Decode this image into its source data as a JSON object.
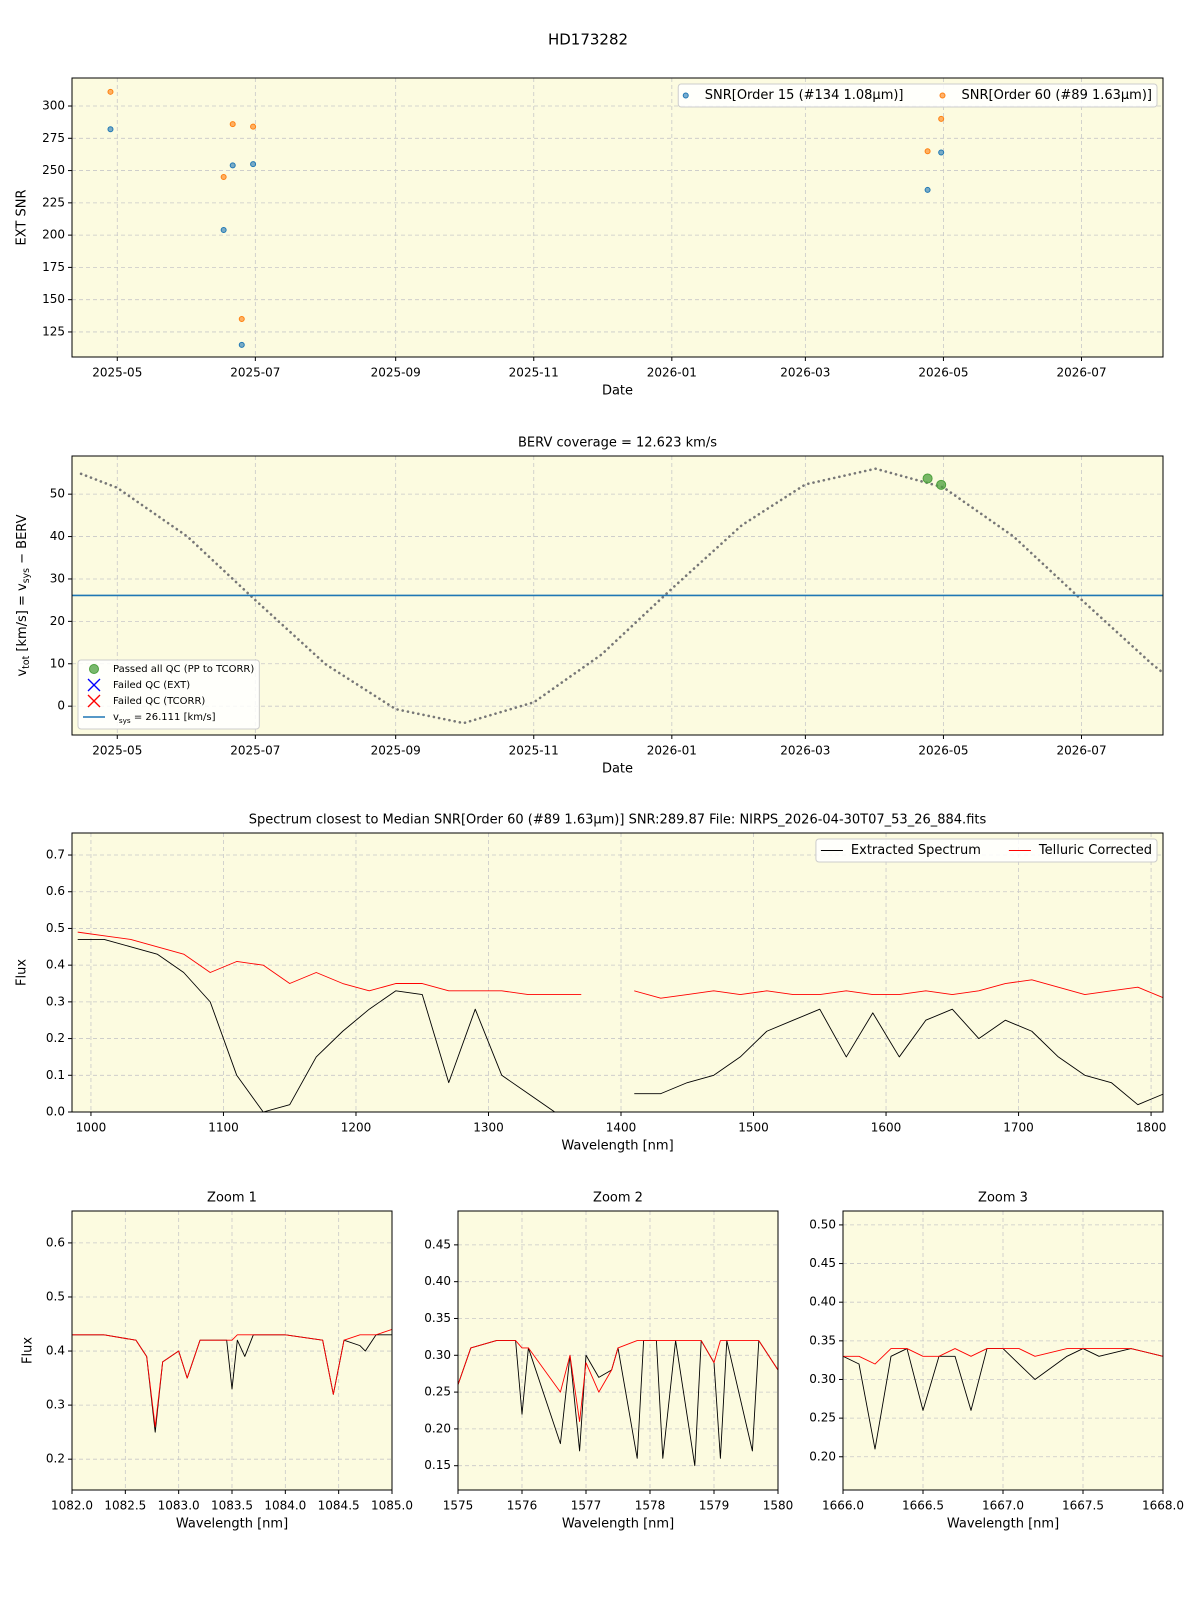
{
  "title": "HD173282",
  "chart_data": [
    {
      "type": "scatter",
      "xlabel": "Date",
      "ylabel": "EXT SNR",
      "grid": true,
      "facecolor": "#fcfbe0",
      "legend": "upper right",
      "legend_columns": 2,
      "xlim": [
        "2025-04-11",
        "2026-08-06"
      ],
      "xticks": [
        "2025-05",
        "2025-07",
        "2025-09",
        "2025-11",
        "2026-01",
        "2026-03",
        "2026-05",
        "2026-07"
      ],
      "ylim": [
        105.6,
        321.7
      ],
      "yticks": [
        125,
        150,
        175,
        200,
        225,
        250,
        275,
        300
      ],
      "series": [
        {
          "name": "SNR[Order 15 (#134 1.08μm)]",
          "style": "marker",
          "marker": "circle",
          "color": "#1f77b4",
          "x": [
            "2025-04-28",
            "2025-06-17",
            "2025-06-21",
            "2025-06-25",
            "2025-06-30",
            "2026-04-24",
            "2026-04-30"
          ],
          "values": [
            282,
            204,
            254,
            115,
            255,
            235,
            264
          ]
        },
        {
          "name": "SNR[Order 60 (#89 1.63μm)]",
          "style": "marker",
          "marker": "circle",
          "color": "#ff7f0e",
          "x": [
            "2025-04-28",
            "2025-06-17",
            "2025-06-21",
            "2025-06-25",
            "2025-06-30",
            "2026-04-24",
            "2026-04-30"
          ],
          "values": [
            311,
            245,
            286,
            135,
            284,
            265,
            290
          ]
        }
      ]
    },
    {
      "type": "line",
      "title": "BERV coverage = 12.623 km/s",
      "xlabel": "Date",
      "ylabel": [
        {
          "text": "v"
        },
        {
          "text": "tot",
          "sub": true
        },
        {
          "text": " [km/s] = v"
        },
        {
          "text": "sys",
          "sub": true
        },
        {
          "text": " − BERV"
        }
      ],
      "grid": true,
      "facecolor": "#fcfbe0",
      "legend": "lower left",
      "legend_columns": 1,
      "xlim": [
        "2025-04-11",
        "2026-08-06"
      ],
      "xticks": [
        "2025-05",
        "2025-07",
        "2025-09",
        "2025-11",
        "2026-01",
        "2026-03",
        "2026-05",
        "2026-07"
      ],
      "ylim": [
        -6.8,
        59
      ],
      "yticks": [
        0,
        10,
        20,
        30,
        40,
        50
      ],
      "series": [
        {
          "style": "dotted",
          "color": "#777777",
          "x": [
            "2025-04-15",
            "2025-05-01",
            "2025-06-01",
            "2025-07-01",
            "2025-08-01",
            "2025-09-01",
            "2025-10-01",
            "2025-11-01",
            "2025-12-01",
            "2026-01-01",
            "2026-02-01",
            "2026-03-01",
            "2026-04-01",
            "2026-05-01",
            "2026-06-01",
            "2026-07-01",
            "2026-08-01",
            "2026-08-05"
          ],
          "values": [
            54.8,
            51.5,
            40.0,
            25.0,
            9.9,
            -0.7,
            -4.0,
            0.9,
            12.2,
            27.7,
            42.7,
            52.3,
            56.0,
            51.6,
            40.0,
            25.1,
            10.0,
            8.3
          ]
        },
        {
          "name": "Passed all QC (PP to TCORR)",
          "style": "marker",
          "marker": "circle",
          "color": "#4ca03c",
          "x": [
            "2026-04-24",
            "2026-04-30"
          ],
          "values": [
            53.7,
            52.2
          ]
        },
        {
          "name": "Failed QC (EXT)",
          "style": "marker",
          "marker": "x",
          "color": "#0000ff",
          "x": [],
          "values": []
        },
        {
          "name": "Failed QC (TCORR)",
          "style": "marker",
          "marker": "x",
          "color": "#ff0000",
          "x": [],
          "values": []
        },
        {
          "name": [
            {
              "text": "v"
            },
            {
              "text": "sys",
              "sub": true
            },
            {
              "text": " = 26.111 [km/s]"
            }
          ],
          "style": "hline",
          "color": "#1f77b4",
          "values": [
            26.111
          ]
        }
      ]
    },
    {
      "type": "line",
      "title": "Spectrum closest to Median SNR[Order 60 (#89 1.63μm)]     SNR:289.87     File: NIRPS_2026-04-30T07_53_26_884.fits",
      "xlabel": "Wavelength [nm]",
      "ylabel": "Flux",
      "grid": true,
      "facecolor": "#fcfbe0",
      "legend": "upper right",
      "legend_columns": 2,
      "xlim": [
        985.7,
        1809
      ],
      "xticks": [
        1000,
        1100,
        1200,
        1300,
        1400,
        1500,
        1600,
        1700,
        1800
      ],
      "ylim": [
        0,
        0.76
      ],
      "yticks": [
        {
          "value": 0,
          "label": "0.0"
        },
        0.1,
        0.2,
        0.3,
        0.4,
        0.5,
        0.6,
        0.7
      ],
      "series": [
        {
          "name": "Extracted Spectrum",
          "style": "line",
          "color": "#000000",
          "x": [
            990,
            1010,
            1030,
            1050,
            1070,
            1090,
            1110,
            1130,
            1150,
            1170,
            1190,
            1210,
            1230,
            1250,
            1270,
            1290,
            1310,
            1330,
            1350,
            1370,
            1390,
            1410,
            1430,
            1450,
            1470,
            1490,
            1510,
            1530,
            1550,
            1570,
            1590,
            1610,
            1630,
            1650,
            1670,
            1690,
            1710,
            1730,
            1750,
            1770,
            1790,
            1810
          ],
          "values": [
            0.47,
            0.47,
            0.45,
            0.43,
            0.38,
            0.3,
            0.1,
            0.0,
            0.02,
            0.15,
            0.22,
            0.28,
            0.33,
            0.32,
            0.08,
            0.28,
            0.1,
            0.05,
            0.0,
            0.0,
            null,
            0.05,
            0.05,
            0.08,
            0.1,
            0.15,
            0.22,
            0.25,
            0.28,
            0.15,
            0.27,
            0.15,
            0.25,
            0.28,
            0.2,
            0.25,
            0.22,
            0.15,
            0.1,
            0.08,
            0.02,
            0.05
          ]
        },
        {
          "name": "Telluric Corrected",
          "style": "line",
          "color": "#ff0000",
          "x": [
            990,
            1010,
            1030,
            1050,
            1070,
            1090,
            1110,
            1130,
            1150,
            1170,
            1190,
            1210,
            1230,
            1250,
            1270,
            1290,
            1310,
            1330,
            1350,
            1370,
            1390,
            1410,
            1430,
            1450,
            1470,
            1490,
            1510,
            1530,
            1550,
            1570,
            1590,
            1610,
            1630,
            1650,
            1670,
            1690,
            1710,
            1730,
            1750,
            1770,
            1790,
            1810
          ],
          "values": [
            0.49,
            0.48,
            0.47,
            0.45,
            0.43,
            0.38,
            0.41,
            0.4,
            0.35,
            0.38,
            0.35,
            0.33,
            0.35,
            0.35,
            0.33,
            0.33,
            0.33,
            0.32,
            0.32,
            0.32,
            null,
            0.33,
            0.31,
            0.32,
            0.33,
            0.32,
            0.33,
            0.32,
            0.32,
            0.33,
            0.32,
            0.32,
            0.33,
            0.32,
            0.33,
            0.35,
            0.36,
            0.34,
            0.32,
            0.33,
            0.34,
            0.31
          ]
        }
      ]
    },
    {
      "type": "line",
      "title": "Zoom 1",
      "xlabel": "Wavelength [nm]",
      "ylabel": "Flux",
      "grid": true,
      "facecolor": "#fcfbe0",
      "xlim": [
        1082,
        1085
      ],
      "xticks": [
        {
          "value": 1082,
          "label": "1082.0"
        },
        1082.5,
        {
          "value": 1083,
          "label": "1083.0"
        },
        1083.5,
        {
          "value": 1084,
          "label": "1084.0"
        },
        1084.5,
        {
          "value": 1085,
          "label": "1085.0"
        }
      ],
      "ylim": [
        0.143,
        0.659
      ],
      "yticks": [
        0.2,
        0.3,
        0.4,
        0.5,
        0.6
      ],
      "series": [
        {
          "style": "line",
          "color": "#000000",
          "x": [
            1082.0,
            1082.3,
            1082.6,
            1082.7,
            1082.78,
            1082.85,
            1083.0,
            1083.08,
            1083.2,
            1083.45,
            1083.5,
            1083.55,
            1083.62,
            1083.7,
            1084.0,
            1084.35,
            1084.45,
            1084.55,
            1084.7,
            1084.75,
            1084.85,
            1085.0
          ],
          "values": [
            0.43,
            0.43,
            0.42,
            0.39,
            0.25,
            0.38,
            0.4,
            0.35,
            0.42,
            0.42,
            0.33,
            0.42,
            0.39,
            0.43,
            0.43,
            0.42,
            0.32,
            0.42,
            0.41,
            0.4,
            0.43,
            0.43
          ]
        },
        {
          "style": "line",
          "color": "#ff0000",
          "x": [
            1082.0,
            1082.3,
            1082.6,
            1082.7,
            1082.78,
            1082.85,
            1083.0,
            1083.08,
            1083.2,
            1083.45,
            1083.5,
            1083.55,
            1083.62,
            1083.7,
            1084.0,
            1084.35,
            1084.45,
            1084.55,
            1084.7,
            1084.75,
            1084.85,
            1085.0
          ],
          "values": [
            0.43,
            0.43,
            0.42,
            0.39,
            0.26,
            0.38,
            0.4,
            0.35,
            0.42,
            0.42,
            0.42,
            0.43,
            0.43,
            0.43,
            0.43,
            0.42,
            0.32,
            0.42,
            0.43,
            0.43,
            0.43,
            0.44
          ]
        }
      ]
    },
    {
      "type": "line",
      "title": "Zoom 2",
      "xlabel": "Wavelength [nm]",
      "grid": true,
      "facecolor": "#fcfbe0",
      "xlim": [
        1575,
        1580
      ],
      "xticks": [
        1575,
        1576,
        1577,
        1578,
        1579,
        1580
      ],
      "ylim": [
        0.117,
        0.496
      ],
      "yticks": [
        0.15,
        {
          "value": 0.2,
          "label": "0.20"
        },
        0.25,
        {
          "value": 0.3,
          "label": "0.30"
        },
        0.35,
        {
          "value": 0.4,
          "label": "0.40"
        },
        0.45
      ],
      "series": [
        {
          "style": "line",
          "color": "#000000",
          "x": [
            1575,
            1575.2,
            1575.6,
            1575.9,
            1576.0,
            1576.1,
            1576.6,
            1576.75,
            1576.9,
            1577.0,
            1577.2,
            1577.4,
            1577.5,
            1577.8,
            1577.9,
            1578.1,
            1578.2,
            1578.4,
            1578.7,
            1578.8,
            1579.0,
            1579.1,
            1579.2,
            1579.6,
            1579.7,
            1580
          ],
          "values": [
            0.26,
            0.31,
            0.32,
            0.32,
            0.22,
            0.31,
            0.18,
            0.3,
            0.17,
            0.3,
            0.27,
            0.28,
            0.31,
            0.16,
            0.32,
            0.32,
            0.16,
            0.32,
            0.15,
            0.32,
            0.29,
            0.16,
            0.32,
            0.17,
            0.32,
            0.28
          ]
        },
        {
          "style": "line",
          "color": "#ff0000",
          "x": [
            1575,
            1575.2,
            1575.6,
            1575.9,
            1576.0,
            1576.1,
            1576.6,
            1576.75,
            1576.9,
            1577.0,
            1577.2,
            1577.4,
            1577.5,
            1577.8,
            1577.9,
            1578.1,
            1578.2,
            1578.4,
            1578.7,
            1578.8,
            1579.0,
            1579.1,
            1579.2,
            1579.6,
            1579.7,
            1580
          ],
          "values": [
            0.26,
            0.31,
            0.32,
            0.32,
            0.31,
            0.31,
            0.25,
            0.3,
            0.21,
            0.29,
            0.25,
            0.28,
            0.31,
            0.32,
            0.32,
            0.32,
            0.32,
            0.32,
            0.32,
            0.32,
            0.29,
            0.32,
            0.32,
            0.32,
            0.32,
            0.28
          ]
        }
      ]
    },
    {
      "type": "line",
      "title": "Zoom 3",
      "xlabel": "Wavelength [nm]",
      "grid": true,
      "facecolor": "#fcfbe0",
      "xlim": [
        1666,
        1668
      ],
      "xticks": [
        {
          "value": 1666,
          "label": "1666.0"
        },
        1666.5,
        {
          "value": 1667,
          "label": "1667.0"
        },
        1667.5,
        {
          "value": 1668,
          "label": "1668.0"
        }
      ],
      "ylim": [
        0.157,
        0.518
      ],
      "yticks": [
        {
          "value": 0.2,
          "label": "0.20"
        },
        0.25,
        {
          "value": 0.3,
          "label": "0.30"
        },
        0.35,
        {
          "value": 0.4,
          "label": "0.40"
        },
        0.45,
        {
          "value": 0.5,
          "label": "0.50"
        }
      ],
      "series": [
        {
          "style": "line",
          "color": "#000000",
          "x": [
            1666.0,
            1666.1,
            1666.2,
            1666.3,
            1666.4,
            1666.5,
            1666.6,
            1666.7,
            1666.8,
            1666.9,
            1667.0,
            1667.1,
            1667.2,
            1667.4,
            1667.5,
            1667.6,
            1667.8,
            1668.0
          ],
          "values": [
            0.33,
            0.32,
            0.21,
            0.33,
            0.34,
            0.26,
            0.33,
            0.33,
            0.26,
            0.34,
            0.34,
            0.32,
            0.3,
            0.33,
            0.34,
            0.33,
            0.34,
            0.33
          ]
        },
        {
          "style": "line",
          "color": "#ff0000",
          "x": [
            1666.0,
            1666.1,
            1666.2,
            1666.3,
            1666.4,
            1666.5,
            1666.6,
            1666.7,
            1666.8,
            1666.9,
            1667.0,
            1667.1,
            1667.2,
            1667.4,
            1667.5,
            1667.6,
            1667.8,
            1668.0
          ],
          "values": [
            0.33,
            0.33,
            0.32,
            0.34,
            0.34,
            0.33,
            0.33,
            0.34,
            0.33,
            0.34,
            0.34,
            0.34,
            0.33,
            0.34,
            0.34,
            0.34,
            0.34,
            0.33
          ]
        }
      ]
    }
  ]
}
